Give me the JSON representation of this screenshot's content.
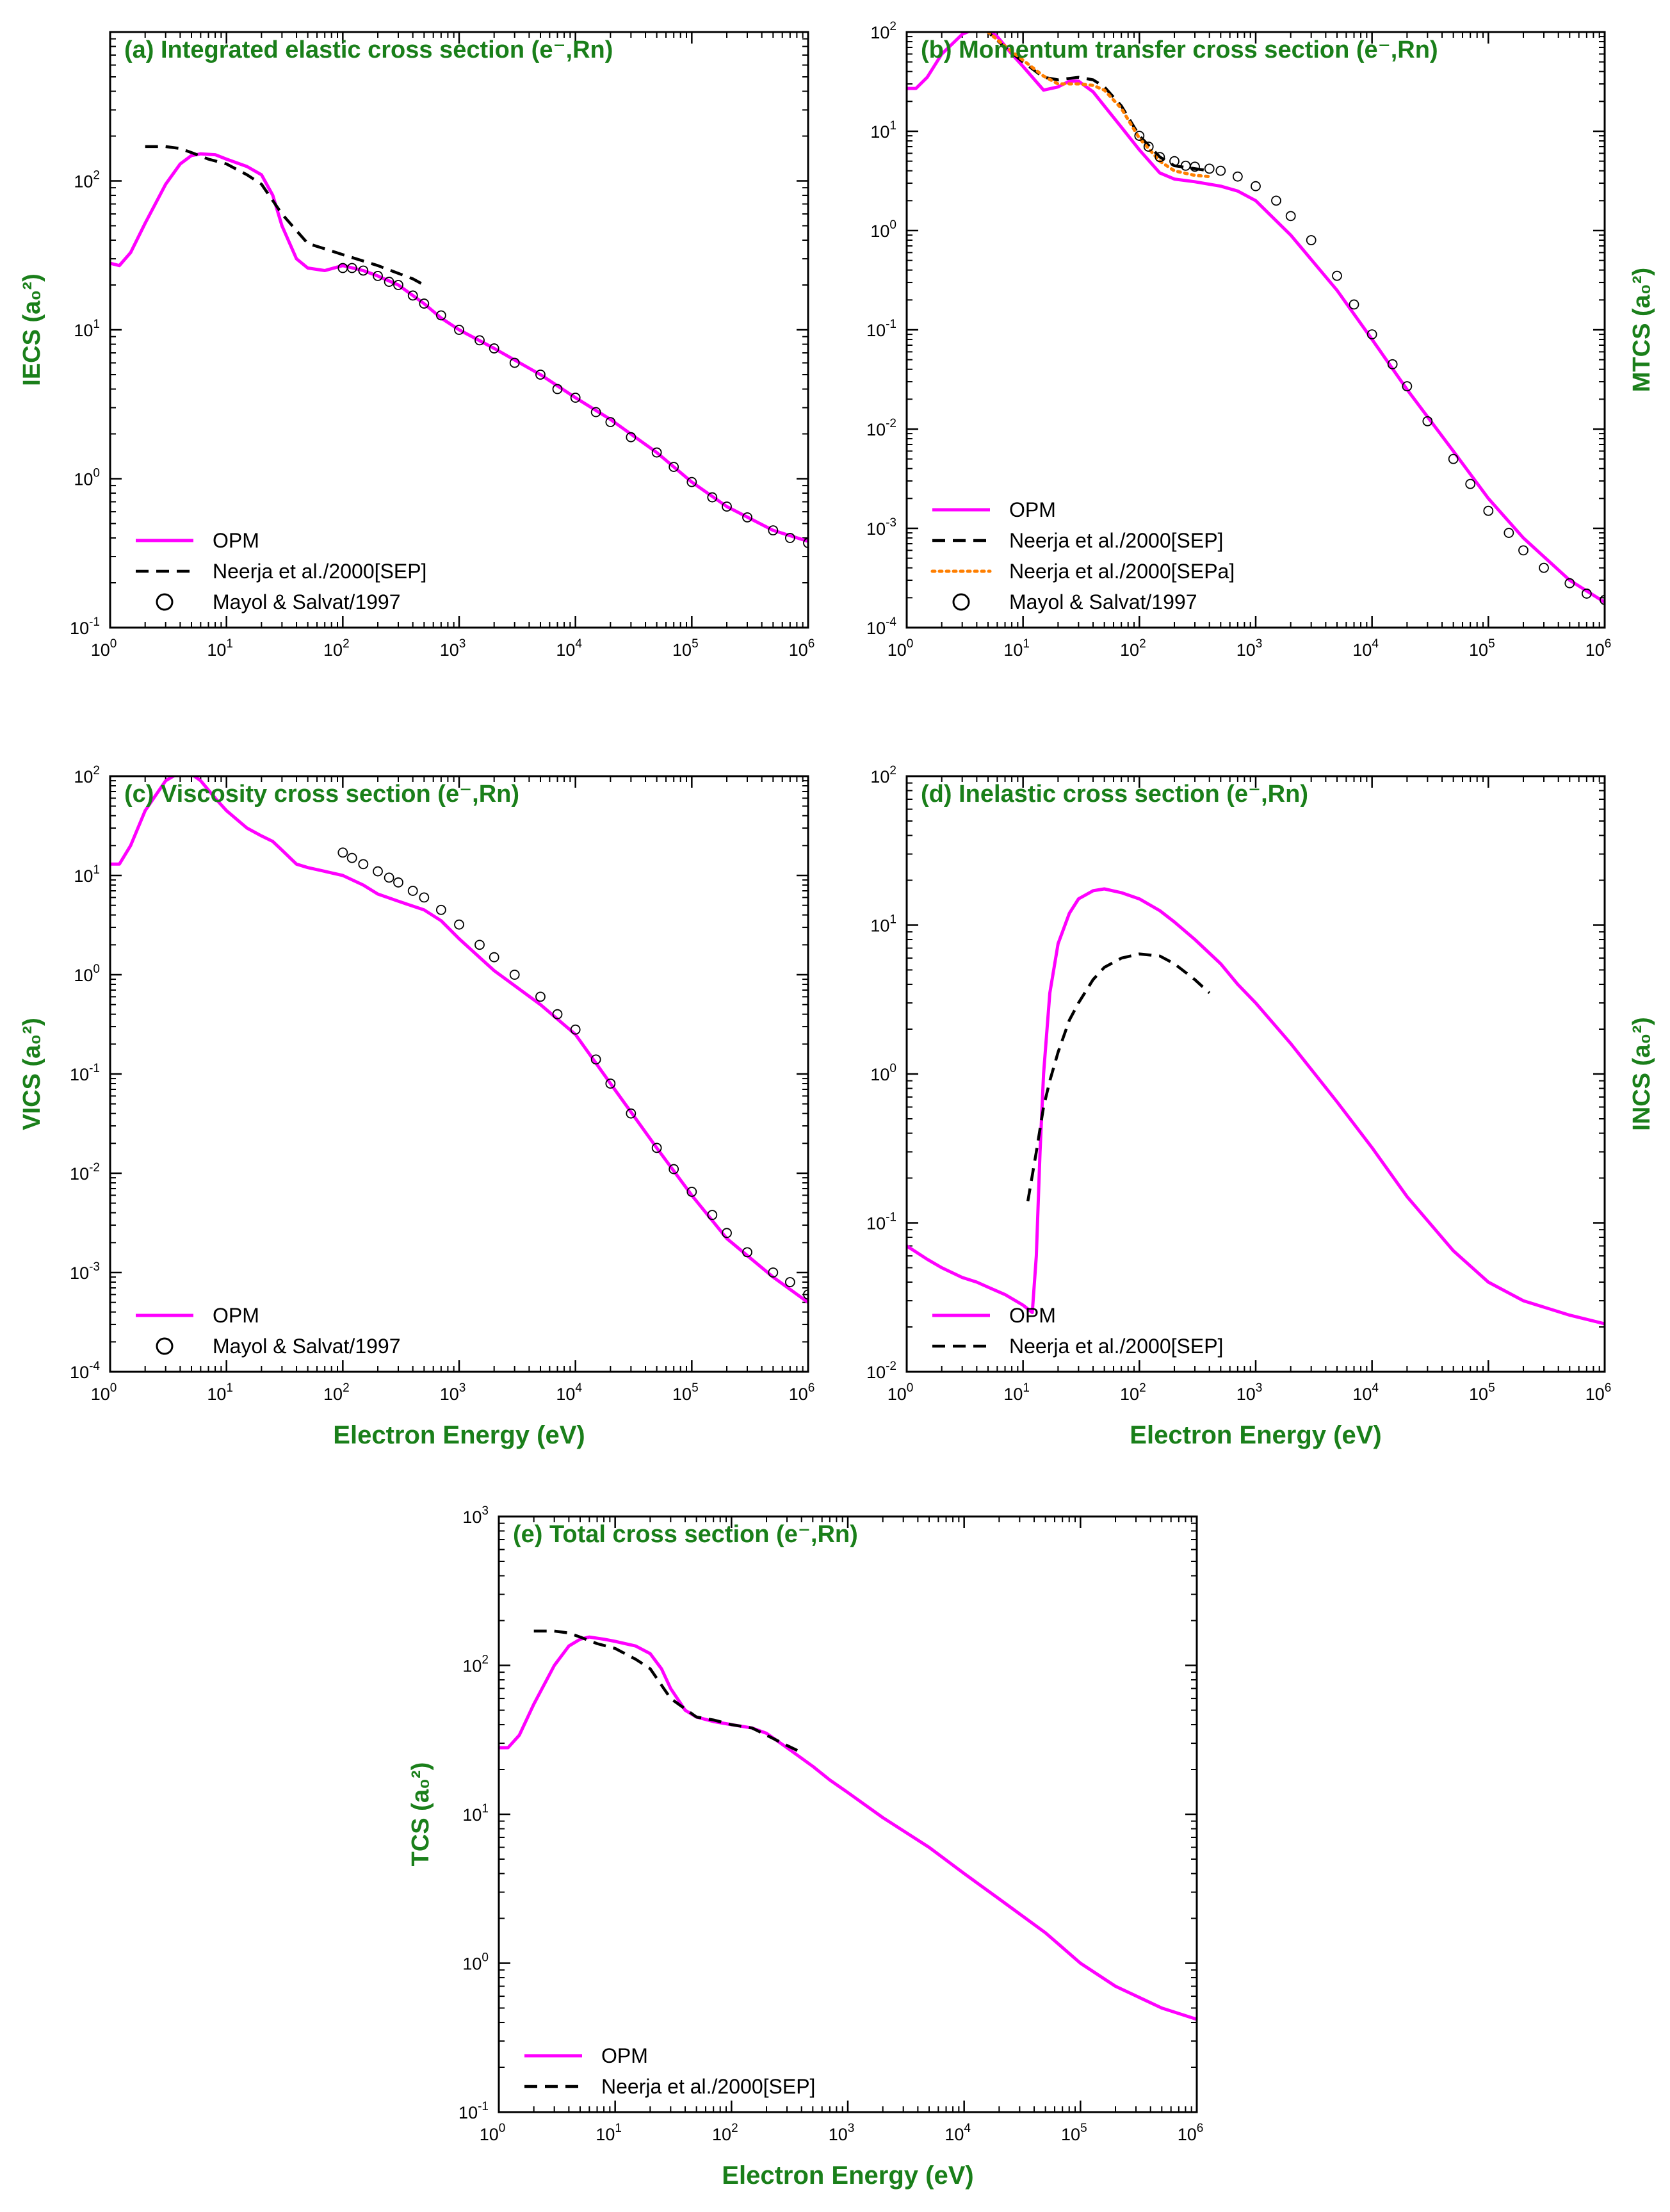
{
  "colors": {
    "opm": "#ff00ff",
    "sep": "#000000",
    "sepa": "#ff7f00",
    "label_green": "#1a7f1a",
    "axis": "#000000"
  },
  "chart_data": [
    {
      "id": "a",
      "type": "line",
      "title": "(a) Integrated elastic cross section (e⁻,Rn)",
      "ylabel": "IECS (a₀²)",
      "xlabel": "",
      "xscale": "log",
      "yscale": "log",
      "xlim": [
        1,
        1000000
      ],
      "ylim": [
        0.1,
        1000
      ],
      "xtick_exponents": [
        "0",
        "1",
        "2",
        "3",
        "4",
        "5",
        "6"
      ],
      "ytick_exponents": [
        "-1",
        "0",
        "1",
        "2"
      ],
      "legend": [
        "OPM",
        "Neerja et al./2000[SEP]",
        "Mayol & Salvat/1997"
      ],
      "series": [
        {
          "name": "OPM",
          "style": "solid",
          "x": [
            1,
            1.2,
            1.5,
            2,
            3,
            4,
            5,
            6,
            8,
            10,
            15,
            20,
            25,
            30,
            40,
            50,
            70,
            100,
            150,
            200,
            300,
            500,
            700,
            1000,
            2000,
            5000,
            10000,
            20000,
            50000,
            100000,
            200000,
            500000,
            1000000
          ],
          "y": [
            28,
            27,
            33,
            52,
            95,
            130,
            148,
            152,
            150,
            140,
            125,
            110,
            80,
            50,
            30,
            26,
            25,
            27,
            25,
            23,
            20,
            15,
            12,
            10,
            7.5,
            5,
            3.5,
            2.5,
            1.5,
            0.95,
            0.65,
            0.45,
            0.38
          ]
        },
        {
          "name": "Neerja et al./2000[SEP]",
          "style": "dashed",
          "x": [
            2,
            3,
            4,
            5,
            7,
            10,
            15,
            20,
            30,
            50,
            70,
            100,
            200,
            400,
            500
          ],
          "y": [
            170,
            170,
            165,
            155,
            140,
            130,
            110,
            95,
            60,
            38,
            35,
            32,
            27,
            22,
            20
          ]
        },
        {
          "name": "Mayol & Salvat/1997",
          "style": "circle",
          "x": [
            100,
            120,
            150,
            200,
            250,
            300,
            400,
            500,
            700,
            1000,
            1500,
            2000,
            3000,
            5000,
            7000,
            10000,
            15000,
            20000,
            30000,
            50000,
            70000,
            100000,
            150000,
            200000,
            300000,
            500000,
            700000,
            1000000
          ],
          "y": [
            26,
            26,
            25,
            23,
            21,
            20,
            17,
            15,
            12.5,
            10,
            8.5,
            7.5,
            6,
            5,
            4,
            3.5,
            2.8,
            2.4,
            1.9,
            1.5,
            1.2,
            0.95,
            0.75,
            0.65,
            0.55,
            0.45,
            0.4,
            0.37
          ]
        }
      ]
    },
    {
      "id": "b",
      "type": "line",
      "title": "(b) Momentum transfer cross section (e⁻,Rn)",
      "ylabel": "MTCS (a₀²)",
      "xlabel": "",
      "xscale": "log",
      "yscale": "log",
      "xlim": [
        1,
        1000000
      ],
      "ylim": [
        0.0001,
        100
      ],
      "xtick_exponents": [
        "0",
        "1",
        "2",
        "3",
        "4",
        "5",
        "6"
      ],
      "ytick_exponents": [
        "-4",
        "-3",
        "-2",
        "-1",
        "0",
        "1",
        "2"
      ],
      "legend": [
        "OPM",
        "Neerja et al./2000[SEP]",
        "Neerja et al./2000[SEPa]",
        "Mayol & Salvat/1997"
      ],
      "series": [
        {
          "name": "OPM",
          "style": "solid",
          "x": [
            1,
            1.2,
            1.5,
            2,
            3,
            4,
            5,
            6,
            8,
            10,
            15,
            20,
            25,
            30,
            40,
            50,
            70,
            100,
            150,
            200,
            300,
            500,
            700,
            1000,
            2000,
            5000,
            10000,
            20000,
            50000,
            100000,
            200000,
            500000,
            1000000
          ],
          "y": [
            27,
            27,
            35,
            60,
            95,
            110,
            105,
            90,
            60,
            45,
            26,
            28,
            32,
            32,
            25,
            18,
            11,
            6.5,
            3.8,
            3.3,
            3.1,
            2.8,
            2.5,
            2,
            0.9,
            0.25,
            0.08,
            0.025,
            0.006,
            0.002,
            0.0008,
            0.0003,
            0.00018
          ]
        },
        {
          "name": "Neerja et al./2000[SEP]",
          "style": "dashed",
          "x": [
            2,
            3,
            4,
            5,
            7,
            10,
            15,
            20,
            30,
            40,
            50,
            70,
            100,
            150,
            200,
            300,
            400
          ],
          "y": [
            140,
            125,
            110,
            100,
            70,
            50,
            35,
            33,
            35,
            33,
            28,
            18,
            9,
            5.5,
            4.5,
            4.2,
            4
          ]
        },
        {
          "name": "Neerja et al./2000[SEPa]",
          "style": "dotted",
          "x": [
            2,
            3,
            4,
            5,
            7,
            10,
            15,
            20,
            30,
            40,
            50,
            70,
            100,
            150,
            200,
            300,
            400
          ],
          "y": [
            150,
            130,
            115,
            100,
            72,
            52,
            36,
            30,
            30,
            29,
            26,
            17,
            8.5,
            5,
            4,
            3.6,
            3.5
          ]
        },
        {
          "name": "Mayol & Salvat/1997",
          "style": "circle",
          "x": [
            100,
            120,
            150,
            200,
            250,
            300,
            400,
            500,
            700,
            1000,
            1500,
            2000,
            3000,
            5000,
            7000,
            10000,
            15000,
            20000,
            30000,
            50000,
            70000,
            100000,
            150000,
            200000,
            300000,
            500000,
            700000,
            1000000
          ],
          "y": [
            9,
            7,
            5.5,
            5,
            4.5,
            4.4,
            4.2,
            4,
            3.5,
            2.8,
            2,
            1.4,
            0.8,
            0.35,
            0.18,
            0.09,
            0.045,
            0.027,
            0.012,
            0.005,
            0.0028,
            0.0015,
            0.0009,
            0.0006,
            0.0004,
            0.00028,
            0.00022,
            0.00019
          ]
        }
      ]
    },
    {
      "id": "c",
      "type": "line",
      "title": "(c) Viscosity cross section (e⁻,Rn)",
      "ylabel": "VICS (a₀²)",
      "xlabel": "Electron Energy (eV)",
      "xscale": "log",
      "yscale": "log",
      "xlim": [
        1,
        1000000
      ],
      "ylim": [
        0.0001,
        100
      ],
      "xtick_exponents": [
        "0",
        "1",
        "2",
        "3",
        "4",
        "5",
        "6"
      ],
      "ytick_exponents": [
        "-4",
        "-3",
        "-2",
        "-1",
        "0",
        "1",
        "2"
      ],
      "legend": [
        "OPM",
        "Mayol & Salvat/1997"
      ],
      "series": [
        {
          "name": "OPM",
          "style": "solid",
          "x": [
            1,
            1.2,
            1.5,
            2,
            3,
            4,
            5,
            6,
            8,
            10,
            15,
            20,
            25,
            30,
            40,
            50,
            70,
            100,
            150,
            200,
            300,
            500,
            700,
            1000,
            2000,
            5000,
            10000,
            20000,
            50000,
            100000,
            200000,
            500000,
            1000000
          ],
          "y": [
            13,
            13,
            20,
            45,
            90,
            110,
            105,
            90,
            60,
            45,
            30,
            25,
            22,
            18,
            13,
            12,
            11,
            10,
            8,
            6.5,
            5.5,
            4.5,
            3.5,
            2.3,
            1.1,
            0.5,
            0.25,
            0.08,
            0.018,
            0.006,
            0.0022,
            0.0009,
            0.0005
          ]
        },
        {
          "name": "Mayol & Salvat/1997",
          "style": "circle",
          "x": [
            100,
            120,
            150,
            200,
            250,
            300,
            400,
            500,
            700,
            1000,
            1500,
            2000,
            3000,
            5000,
            7000,
            10000,
            15000,
            20000,
            30000,
            50000,
            70000,
            100000,
            150000,
            200000,
            300000,
            500000,
            700000,
            1000000
          ],
          "y": [
            17,
            15,
            13,
            11,
            9.5,
            8.5,
            7,
            6,
            4.5,
            3.2,
            2,
            1.5,
            1,
            0.6,
            0.4,
            0.28,
            0.14,
            0.08,
            0.04,
            0.018,
            0.011,
            0.0065,
            0.0038,
            0.0025,
            0.0016,
            0.001,
            0.0008,
            0.0006
          ]
        }
      ]
    },
    {
      "id": "d",
      "type": "line",
      "title": "(d) Inelastic cross section (e⁻,Rn)",
      "ylabel": "INCS (a₀²)",
      "xlabel": "Electron Energy (eV)",
      "xscale": "log",
      "yscale": "log",
      "xlim": [
        1,
        1000000
      ],
      "ylim": [
        0.01,
        100
      ],
      "xtick_exponents": [
        "0",
        "1",
        "2",
        "3",
        "4",
        "5",
        "6"
      ],
      "ytick_exponents": [
        "-2",
        "-1",
        "0",
        "1",
        "2"
      ],
      "legend": [
        "OPM",
        "Neerja et al./2000[SEP]"
      ],
      "series": [
        {
          "name": "OPM",
          "style": "solid",
          "x": [
            1,
            1.5,
            2,
            3,
            4,
            5,
            7,
            10,
            12,
            13,
            14,
            15,
            17,
            20,
            25,
            30,
            40,
            50,
            70,
            100,
            150,
            200,
            300,
            500,
            700,
            1000,
            2000,
            5000,
            10000,
            20000,
            50000,
            100000,
            200000,
            500000,
            1000000
          ],
          "y": [
            0.07,
            0.057,
            0.05,
            0.043,
            0.04,
            0.037,
            0.033,
            0.028,
            0.025,
            0.06,
            0.3,
            1,
            3.5,
            7.5,
            12,
            15,
            17,
            17.5,
            16.5,
            15,
            12.5,
            10.5,
            8,
            5.5,
            4,
            3,
            1.6,
            0.65,
            0.32,
            0.15,
            0.065,
            0.04,
            0.03,
            0.024,
            0.021
          ]
        },
        {
          "name": "Neerja et al./2000[SEP]",
          "style": "dashed",
          "x": [
            11,
            13,
            15,
            17,
            20,
            25,
            30,
            40,
            50,
            70,
            100,
            150,
            200,
            300,
            400
          ],
          "y": [
            0.14,
            0.3,
            0.6,
            0.9,
            1.4,
            2.3,
            3,
            4.3,
            5.2,
            6,
            6.4,
            6.2,
            5.5,
            4.3,
            3.5
          ]
        }
      ]
    },
    {
      "id": "e",
      "type": "line",
      "title": "(e) Total cross section (e⁻,Rn)",
      "ylabel": "TCS (a₀²)",
      "xlabel": "Electron Energy (eV)",
      "xscale": "log",
      "yscale": "log",
      "xlim": [
        1,
        1000000
      ],
      "ylim": [
        0.1,
        1000
      ],
      "xtick_exponents": [
        "0",
        "1",
        "2",
        "3",
        "4",
        "5",
        "6"
      ],
      "ytick_exponents": [
        "-1",
        "0",
        "1",
        "2",
        "3"
      ],
      "legend": [
        "OPM",
        "Neerja et al./2000[SEP]"
      ],
      "series": [
        {
          "name": "OPM",
          "style": "solid",
          "x": [
            1,
            1.2,
            1.5,
            2,
            3,
            4,
            5,
            6,
            8,
            10,
            15,
            20,
            25,
            30,
            40,
            50,
            70,
            100,
            150,
            200,
            300,
            500,
            700,
            1000,
            2000,
            5000,
            10000,
            20000,
            50000,
            100000,
            200000,
            500000,
            1000000
          ],
          "y": [
            28,
            28,
            34,
            55,
            100,
            135,
            150,
            155,
            150,
            145,
            135,
            120,
            95,
            70,
            50,
            45,
            42,
            40,
            38,
            35,
            28,
            21,
            17,
            14,
            9.5,
            6,
            4,
            2.7,
            1.6,
            1,
            0.7,
            0.5,
            0.42
          ]
        },
        {
          "name": "Neerja et al./2000[SEP]",
          "style": "dashed",
          "x": [
            2,
            3,
            4,
            5,
            7,
            10,
            15,
            20,
            30,
            50,
            70,
            100,
            150,
            200,
            300,
            400
          ],
          "y": [
            170,
            170,
            165,
            155,
            140,
            130,
            110,
            95,
            60,
            45,
            43,
            40,
            38,
            34,
            29,
            26
          ]
        }
      ]
    }
  ]
}
